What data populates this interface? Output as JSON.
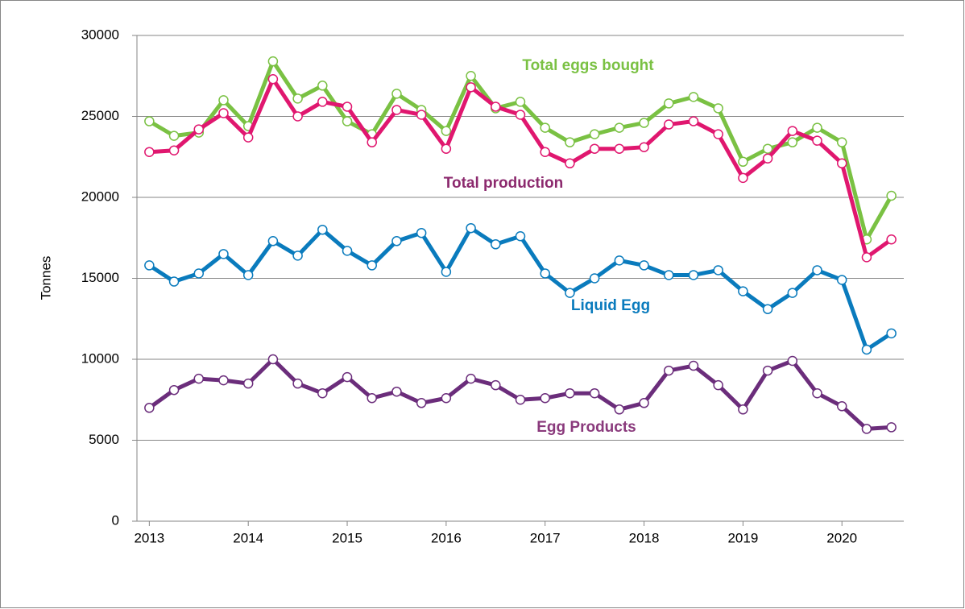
{
  "chart_data": {
    "type": "line",
    "y_label": "Tonnes",
    "x": [
      2013,
      2013.25,
      2013.5,
      2013.75,
      2014,
      2014.25,
      2014.5,
      2014.75,
      2015,
      2015.25,
      2015.5,
      2015.75,
      2016,
      2016.25,
      2016.5,
      2016.75,
      2017,
      2017.25,
      2017.5,
      2017.75,
      2018,
      2018.25,
      2018.5,
      2018.75,
      2019,
      2019.25,
      2019.5,
      2019.75,
      2020,
      2020.25,
      2020.5
    ],
    "xlim": [
      2012.875,
      2020.625
    ],
    "xticks": [
      2013,
      2014,
      2015,
      2016,
      2017,
      2018,
      2019,
      2020
    ],
    "ylim": [
      0,
      30000
    ],
    "yticks": [
      0,
      5000,
      10000,
      15000,
      20000,
      25000,
      30000
    ],
    "grid": true,
    "series": [
      {
        "name": "Total eggs bought",
        "color": "#7ac143",
        "label_color": "#7ac143",
        "values": [
          24700,
          23800,
          24000,
          26000,
          24400,
          28400,
          26100,
          26900,
          24700,
          23900,
          26400,
          25400,
          24100,
          27500,
          25500,
          25900,
          24300,
          23400,
          23900,
          24300,
          24600,
          25800,
          26200,
          25500,
          22200,
          23000,
          23400,
          24300,
          23400,
          17400,
          20100
        ]
      },
      {
        "name": "Total production",
        "color": "#e0176f",
        "label_color": "#8c2a6e",
        "values": [
          22800,
          22900,
          24200,
          25200,
          23700,
          27300,
          25000,
          25900,
          25600,
          23400,
          25400,
          25100,
          23000,
          26800,
          25600,
          25100,
          22800,
          22100,
          23000,
          23000,
          23100,
          24500,
          24700,
          23900,
          21200,
          22400,
          24100,
          23500,
          22100,
          16300,
          17400
        ]
      },
      {
        "name": "Liquid Egg",
        "color": "#0a7bbd",
        "label_color": "#0a7bbd",
        "values": [
          15800,
          14800,
          15300,
          16500,
          15200,
          17300,
          16400,
          18000,
          16700,
          15800,
          17300,
          17800,
          15400,
          18100,
          17100,
          17600,
          15300,
          14100,
          15000,
          16100,
          15800,
          15200,
          15200,
          15500,
          14200,
          13100,
          14100,
          15500,
          14900,
          10600,
          11600
        ]
      },
      {
        "name": "Egg Products",
        "color": "#6b2d7b",
        "label_color": "#8a3a7c",
        "values": [
          7000,
          8100,
          8800,
          8700,
          8500,
          10000,
          8500,
          7900,
          8900,
          7600,
          8000,
          7300,
          7600,
          8800,
          8400,
          7500,
          7600,
          7900,
          7900,
          6900,
          7300,
          9300,
          9600,
          8400,
          6900,
          9300,
          9900,
          7900,
          7100,
          5700,
          5800
        ]
      }
    ]
  }
}
